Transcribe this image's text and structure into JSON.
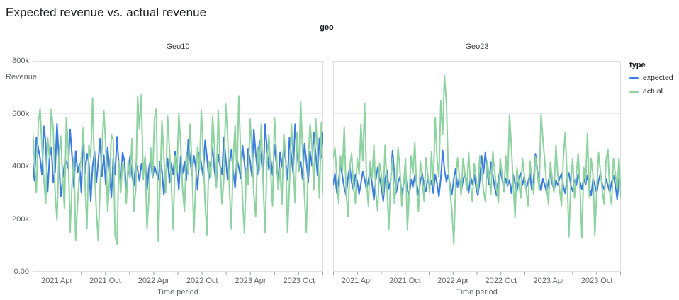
{
  "title": "Expected revenue vs. actual revenue",
  "facet_dimension": {
    "label": "geo"
  },
  "y_axis": {
    "label": "Revenue",
    "ticks": [
      "800k",
      "600k",
      "400k",
      "200k",
      "0.00"
    ]
  },
  "x_axis": {
    "label": "Time period",
    "minor_tick_every_months": 3,
    "tick_labels": [
      {
        "text": "2021 Apr",
        "month": 3
      },
      {
        "text": "2021 Oct",
        "month": 9
      },
      {
        "text": "2022 Apr",
        "month": 15
      },
      {
        "text": "2022 Oct",
        "month": 21
      },
      {
        "text": "2023 Apr",
        "month": 27
      },
      {
        "text": "2023 Oct",
        "month": 33
      }
    ]
  },
  "legend": {
    "title": "type",
    "items": [
      {
        "label": "expected",
        "color": "#3b7ce3"
      },
      {
        "label": "actual",
        "color": "#8fd2a1"
      }
    ]
  },
  "style": {
    "grid_color": "#e9eaec",
    "border_color": "#e0e0e0",
    "tick_mark_color": "#9aa0a6",
    "axis_text_color": "#5f6368",
    "title_color": "#202124"
  },
  "chart_data": [
    {
      "type": "line",
      "facet": "Geo10",
      "x_start": "2021 Jan",
      "x_end": "2023 Dec",
      "x_resolution": "weekly",
      "xlabel": "Time period",
      "ylabel": "Revenue",
      "ylim": [
        0,
        800000
      ],
      "values_unit": "thousands (k)",
      "grid": true,
      "series": [
        {
          "name": "expected",
          "color": "#3b7ce3",
          "values": [
            420,
            345,
            510,
            470,
            430,
            368,
            552,
            489,
            302,
            433,
            470,
            340,
            381,
            562,
            431,
            285,
            349,
            406,
            420,
            391,
            540,
            443,
            322,
            458,
            376,
            410,
            300,
            525,
            372,
            448,
            412,
            268,
            398,
            455,
            339,
            417,
            505,
            362,
            442,
            330,
            470,
            394,
            282,
            430,
            368,
            512,
            401,
            337,
            452,
            420,
            295,
            381,
            440,
            366,
            326,
            412,
            388,
            345,
            408,
            372,
            430,
            310,
            392,
            428,
            356,
            400,
            376,
            348,
            418,
            386,
            292,
            362,
            430,
            340,
            412,
            368,
            455,
            398,
            312,
            438,
            372,
            418,
            346,
            502,
            428,
            366,
            440,
            398,
            310,
            452,
            408,
            362,
            498,
            436,
            352,
            412,
            470,
            388,
            326,
            446,
            402,
            370,
            510,
            432,
            348,
            408,
            462,
            380,
            318,
            428,
            396,
            354,
            478,
            414,
            338,
            468,
            422,
            362,
            540,
            452,
            370,
            496,
            428,
            346,
            560,
            472,
            388,
            430,
            366,
            482,
            412,
            336,
            452,
            398,
            474,
            420,
            348,
            508,
            436,
            372,
            560,
            462,
            386,
            418,
            352,
            486,
            424,
            338,
            456,
            402,
            528,
            446,
            364,
            506,
            432,
            528
          ]
        },
        {
          "name": "actual",
          "color": "#8fd2a1",
          "values": [
            540,
            420,
            300,
            560,
            618,
            470,
            352,
            260,
            510,
            430,
            616,
            540,
            300,
            195,
            430,
            515,
            360,
            240,
            585,
            470,
            150,
            330,
            432,
            120,
            260,
            380,
            430,
            545,
            330,
            165,
            480,
            430,
            660,
            385,
            230,
            118,
            325,
            465,
            610,
            480,
            230,
            340,
            520,
            500,
            135,
            105,
            420,
            300,
            415,
            380,
            260,
            420,
            355,
            505,
            230,
            310,
            665,
            540,
            672,
            350,
            440,
            162,
            280,
            470,
            360,
            580,
            620,
            115,
            330,
            572,
            438,
            300,
            590,
            462,
            328,
            160,
            440,
            372,
            602,
            486,
            312,
            230,
            452,
            370,
            560,
            410,
            148,
            336,
            472,
            388,
            615,
            450,
            260,
            140,
            420,
            356,
            590,
            478,
            320,
            612,
            412,
            256,
            350,
            638,
            520,
            310,
            162,
            428,
            555,
            365,
            668,
            440,
            275,
            145,
            392,
            330,
            580,
            455,
            295,
            210,
            472,
            385,
            560,
            330,
            148,
            410,
            520,
            376,
            250,
            585,
            462,
            312,
            390,
            255,
            522,
            436,
            148,
            330,
            560,
            418,
            262,
            530,
            380,
            645,
            470,
            290,
            150,
            412,
            560,
            478,
            310,
            580,
            452,
            280,
            565,
            300
          ]
        }
      ]
    },
    {
      "type": "line",
      "facet": "Geo23",
      "x_start": "2021 Jan",
      "x_end": "2023 Dec",
      "x_resolution": "weekly",
      "xlabel": "Time period",
      "ylabel": "Revenue",
      "ylim": [
        0,
        800000
      ],
      "values_unit": "thousands (k)",
      "grid": true,
      "series": [
        {
          "name": "expected",
          "color": "#3b7ce3",
          "values": [
            330,
            372,
            298,
            345,
            410,
            362,
            318,
            290,
            356,
            402,
            338,
            310,
            368,
            344,
            295,
            336,
            380,
            352,
            312,
            345,
            388,
            332,
            272,
            348,
            396,
            358,
            322,
            268,
            352,
            385,
            315,
            345,
            460,
            372,
            300,
            338,
            360,
            295,
            332,
            372,
            310,
            288,
            350,
            322,
            365,
            335,
            290,
            342,
            372,
            328,
            305,
            358,
            322,
            345,
            298,
            368,
            335,
            285,
            355,
            460,
            388,
            342,
            368,
            330,
            295,
            352,
            390,
            322,
            355,
            306,
            348,
            372,
            335,
            300,
            362,
            332,
            368,
            318,
            290,
            345,
            440,
            372,
            452,
            378,
            330,
            415,
            368,
            322,
            290,
            348,
            388,
            352,
            312,
            355,
            326,
            348,
            298,
            368,
            332,
            305,
            352,
            375,
            328,
            362,
            315,
            340,
            372,
            310,
            345,
            448,
            385,
            340,
            308,
            352,
            330,
            300,
            342,
            372,
            335,
            310,
            348,
            328,
            355,
            372,
            325,
            298,
            352,
            375,
            330,
            305,
            348,
            328,
            372,
            340,
            312,
            355,
            330,
            365,
            318,
            290,
            352,
            330,
            298,
            345,
            372,
            330,
            312,
            352,
            328,
            300,
            340,
            365,
            328,
            275,
            350,
            330
          ]
        },
        {
          "name": "actual",
          "color": "#8fd2a1",
          "values": [
            430,
            470,
            355,
            260,
            440,
            380,
            550,
            300,
            210,
            395,
            450,
            320,
            260,
            430,
            370,
            560,
            420,
            638,
            340,
            250,
            420,
            355,
            480,
            300,
            230,
            412,
            370,
            290,
            480,
            330,
            160,
            352,
            430,
            260,
            330,
            470,
            385,
            250,
            330,
            430,
            160,
            290,
            440,
            370,
            490,
            310,
            230,
            420,
            355,
            268,
            432,
            370,
            300,
            455,
            330,
            585,
            430,
            360,
            648,
            520,
            745,
            640,
            395,
            310,
            230,
            105,
            330,
            432,
            360,
            290,
            430,
            370,
            310,
            452,
            330,
            265,
            410,
            355,
            300,
            440,
            380,
            310,
            268,
            420,
            365,
            295,
            455,
            380,
            320,
            262,
            430,
            370,
            302,
            440,
            330,
            595,
            480,
            330,
            205,
            395,
            340,
            280,
            430,
            365,
            305,
            250,
            420,
            355,
            295,
            435,
            375,
            310,
            598,
            505,
            420,
            330,
            255,
            415,
            355,
            300,
            480,
            370,
            310,
            250,
            430,
            528,
            365,
            132,
            330,
            430,
            280,
            372,
            448,
            310,
            130,
            395,
            340,
            525,
            282,
            430,
            365,
            135,
            310,
            452,
            380,
            310,
            255,
            420,
            465,
            300,
            255,
            430,
            370,
            310,
            430,
            280
          ]
        }
      ]
    }
  ]
}
